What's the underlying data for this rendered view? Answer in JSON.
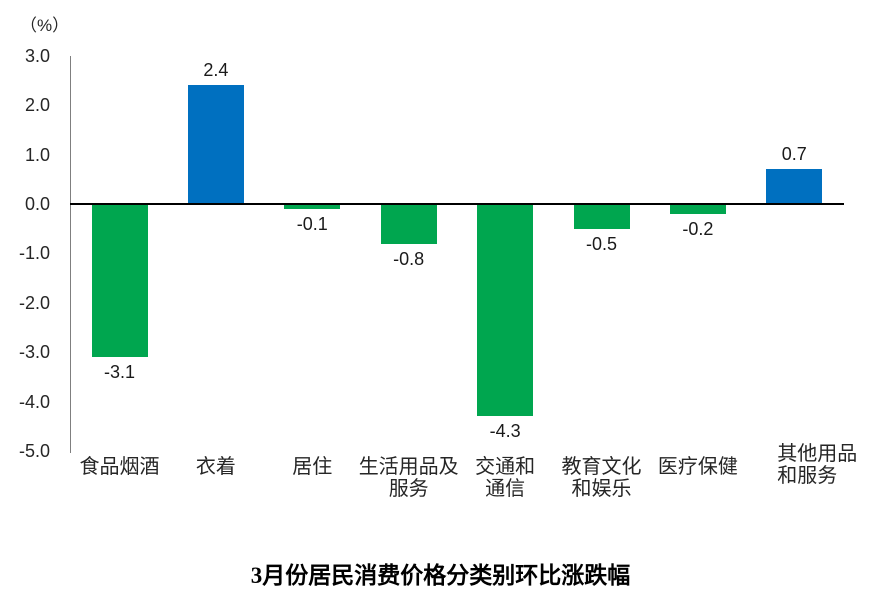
{
  "chart_data": {
    "type": "bar",
    "title": "3月份居民消费价格分类别环比涨跌幅",
    "ylabel": "（%）",
    "ylim": [
      -5.0,
      3.0
    ],
    "ytick_step": 1.0,
    "ytick_labels": [
      "3.0",
      "2.0",
      "1.0",
      "0.0",
      "-1.0",
      "-2.0",
      "-3.0",
      "-4.0",
      "-5.0"
    ],
    "grid": false,
    "legend": "none",
    "categories": [
      "食品烟酒",
      "衣着",
      "居住",
      "生活用品及\n服务",
      "交通和\n通信",
      "教育文化\n和娱乐",
      "医疗保健",
      "其他用品\n和服务"
    ],
    "values": [
      -3.1,
      2.4,
      -0.1,
      -0.8,
      -4.3,
      -0.5,
      -0.2,
      0.7
    ],
    "data_labels": [
      "-3.1",
      "2.4",
      "-0.1",
      "-0.8",
      "-4.3",
      "-0.5",
      "-0.2",
      "0.7"
    ],
    "colors": {
      "positive": "#0070C0",
      "negative": "#00A64F"
    }
  }
}
